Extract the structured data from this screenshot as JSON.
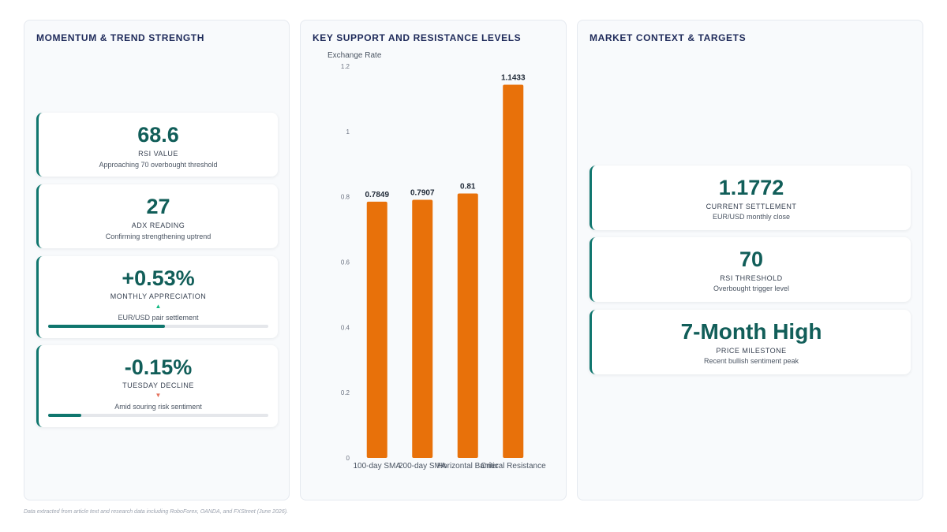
{
  "left_panel": {
    "title": "MOMENTUM & TREND STRENGTH",
    "kpis": [
      {
        "value": "68.6",
        "label": "RSI VALUE",
        "sub": "Approaching 70 overbought threshold"
      },
      {
        "value": "27",
        "label": "ADX READING",
        "sub": "Confirming strengthening uptrend"
      },
      {
        "value": "+0.53%",
        "label": "MONTHLY APPRECIATION",
        "arrow": "▲",
        "sub": "EUR/USD pair settlement",
        "bar_fraction": 0.53
      },
      {
        "value": "-0.15%",
        "label": "TUESDAY DECLINE",
        "arrow": "▼",
        "sub": "Amid souring risk sentiment",
        "bar_fraction": 0.15
      }
    ]
  },
  "middle_panel": {
    "title": "KEY SUPPORT AND RESISTANCE LEVELS"
  },
  "chart_data": {
    "type": "bar",
    "ylabel": "Exchange Rate",
    "xlabel": "",
    "categories": [
      "100-day SMA",
      "200-day SMA",
      "Horizontal Barrier",
      "Critical Resistance"
    ],
    "values": [
      0.7849,
      0.7907,
      0.81,
      1.1433
    ],
    "value_labels": [
      "0.7849",
      "0.7907",
      "0.81",
      "1.1433"
    ],
    "ylim": [
      0,
      1.2
    ],
    "yticks": [
      0,
      0.2,
      0.4,
      0.6,
      0.8,
      1,
      1.2
    ],
    "ytick_labels": [
      "0",
      "0.2",
      "0.4",
      "0.6",
      "0.8",
      "1",
      "1.2"
    ],
    "grid": false,
    "legend": "none",
    "bar_color": "#e8710a"
  },
  "right_panel": {
    "title": "MARKET CONTEXT & TARGETS",
    "kpis": [
      {
        "value": "1.1772",
        "label": "CURRENT SETTLEMENT",
        "sub": "EUR/USD monthly close"
      },
      {
        "value": "70",
        "label": "RSI THRESHOLD",
        "sub": "Overbought trigger level"
      },
      {
        "value": "7-Month High",
        "label": "PRICE MILESTONE",
        "sub": "Recent bullish sentiment peak"
      }
    ]
  },
  "footnote": "Data extracted from article text and research data including RoboForex, OANDA, and FXStreet (June 2026).",
  "colors": {
    "accent": "#0f766e",
    "value_text": "#115e59",
    "up_arrow": "#10b981",
    "down_arrow": "#e5735e",
    "bar": "#e8710a",
    "panel_title": "#1e2a5a"
  }
}
